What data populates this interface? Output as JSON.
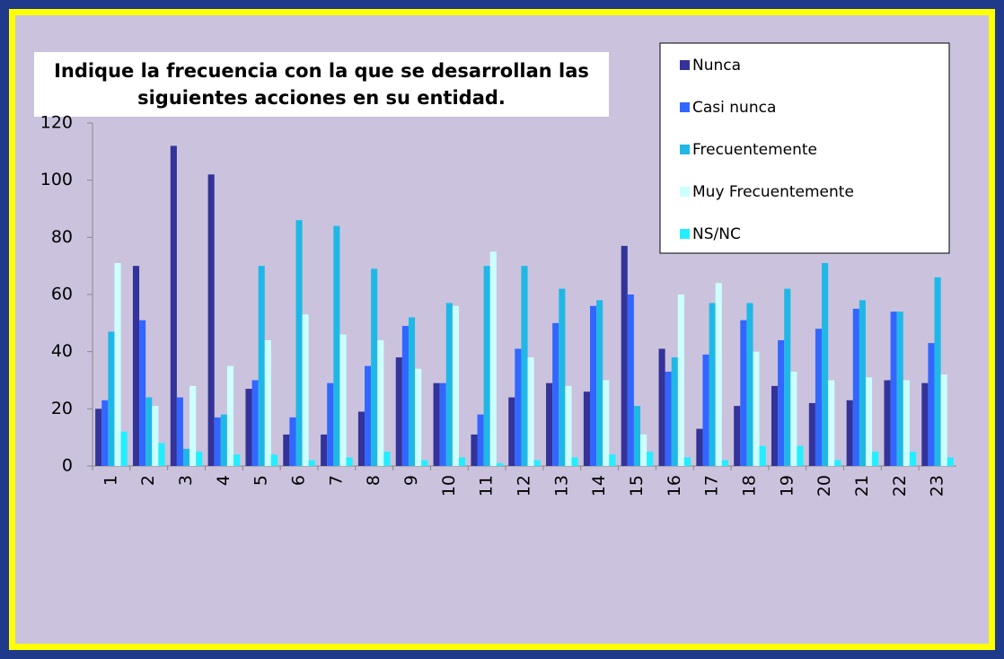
{
  "chart_data": {
    "type": "bar",
    "title_lines": [
      "Indique la frecuencia con la que se desarrollan las",
      "siguientes acciones en su entidad."
    ],
    "categories": [
      "1",
      "2",
      "3",
      "4",
      "5",
      "6",
      "7",
      "8",
      "9",
      "10",
      "11",
      "12",
      "13",
      "14",
      "15",
      "16",
      "17",
      "18",
      "19",
      "20",
      "21",
      "22",
      "23"
    ],
    "series": [
      {
        "name": "Nunca",
        "color": "#333399",
        "values": [
          20,
          70,
          112,
          102,
          27,
          11,
          11,
          19,
          38,
          29,
          11,
          24,
          29,
          26,
          77,
          41,
          13,
          21,
          28,
          22,
          23,
          30,
          29
        ]
      },
      {
        "name": "Casi nunca",
        "color": "#3366ff",
        "values": [
          23,
          51,
          24,
          17,
          30,
          17,
          29,
          35,
          49,
          29,
          18,
          41,
          50,
          56,
          60,
          33,
          39,
          51,
          44,
          48,
          55,
          54,
          43
        ]
      },
      {
        "name": "Frecuentemente",
        "color": "#1fb8e6",
        "values": [
          47,
          24,
          6,
          18,
          70,
          86,
          84,
          69,
          52,
          57,
          70,
          70,
          62,
          58,
          21,
          38,
          57,
          57,
          62,
          71,
          58,
          54,
          66
        ]
      },
      {
        "name": "Muy Frecuentemente",
        "color": "#ccffff",
        "values": [
          71,
          21,
          28,
          35,
          44,
          53,
          46,
          44,
          34,
          56,
          75,
          38,
          28,
          30,
          11,
          60,
          64,
          40,
          33,
          30,
          31,
          30,
          32
        ]
      },
      {
        "name": "NS/NC",
        "color": "#22eeff",
        "values": [
          12,
          8,
          5,
          4,
          4,
          2,
          3,
          5,
          2,
          3,
          1,
          2,
          3,
          4,
          5,
          3,
          2,
          7,
          7,
          2,
          5,
          5,
          3
        ]
      }
    ],
    "ylim": [
      0,
      120
    ],
    "yticks": [
      0,
      20,
      40,
      60,
      80,
      100,
      120
    ]
  }
}
